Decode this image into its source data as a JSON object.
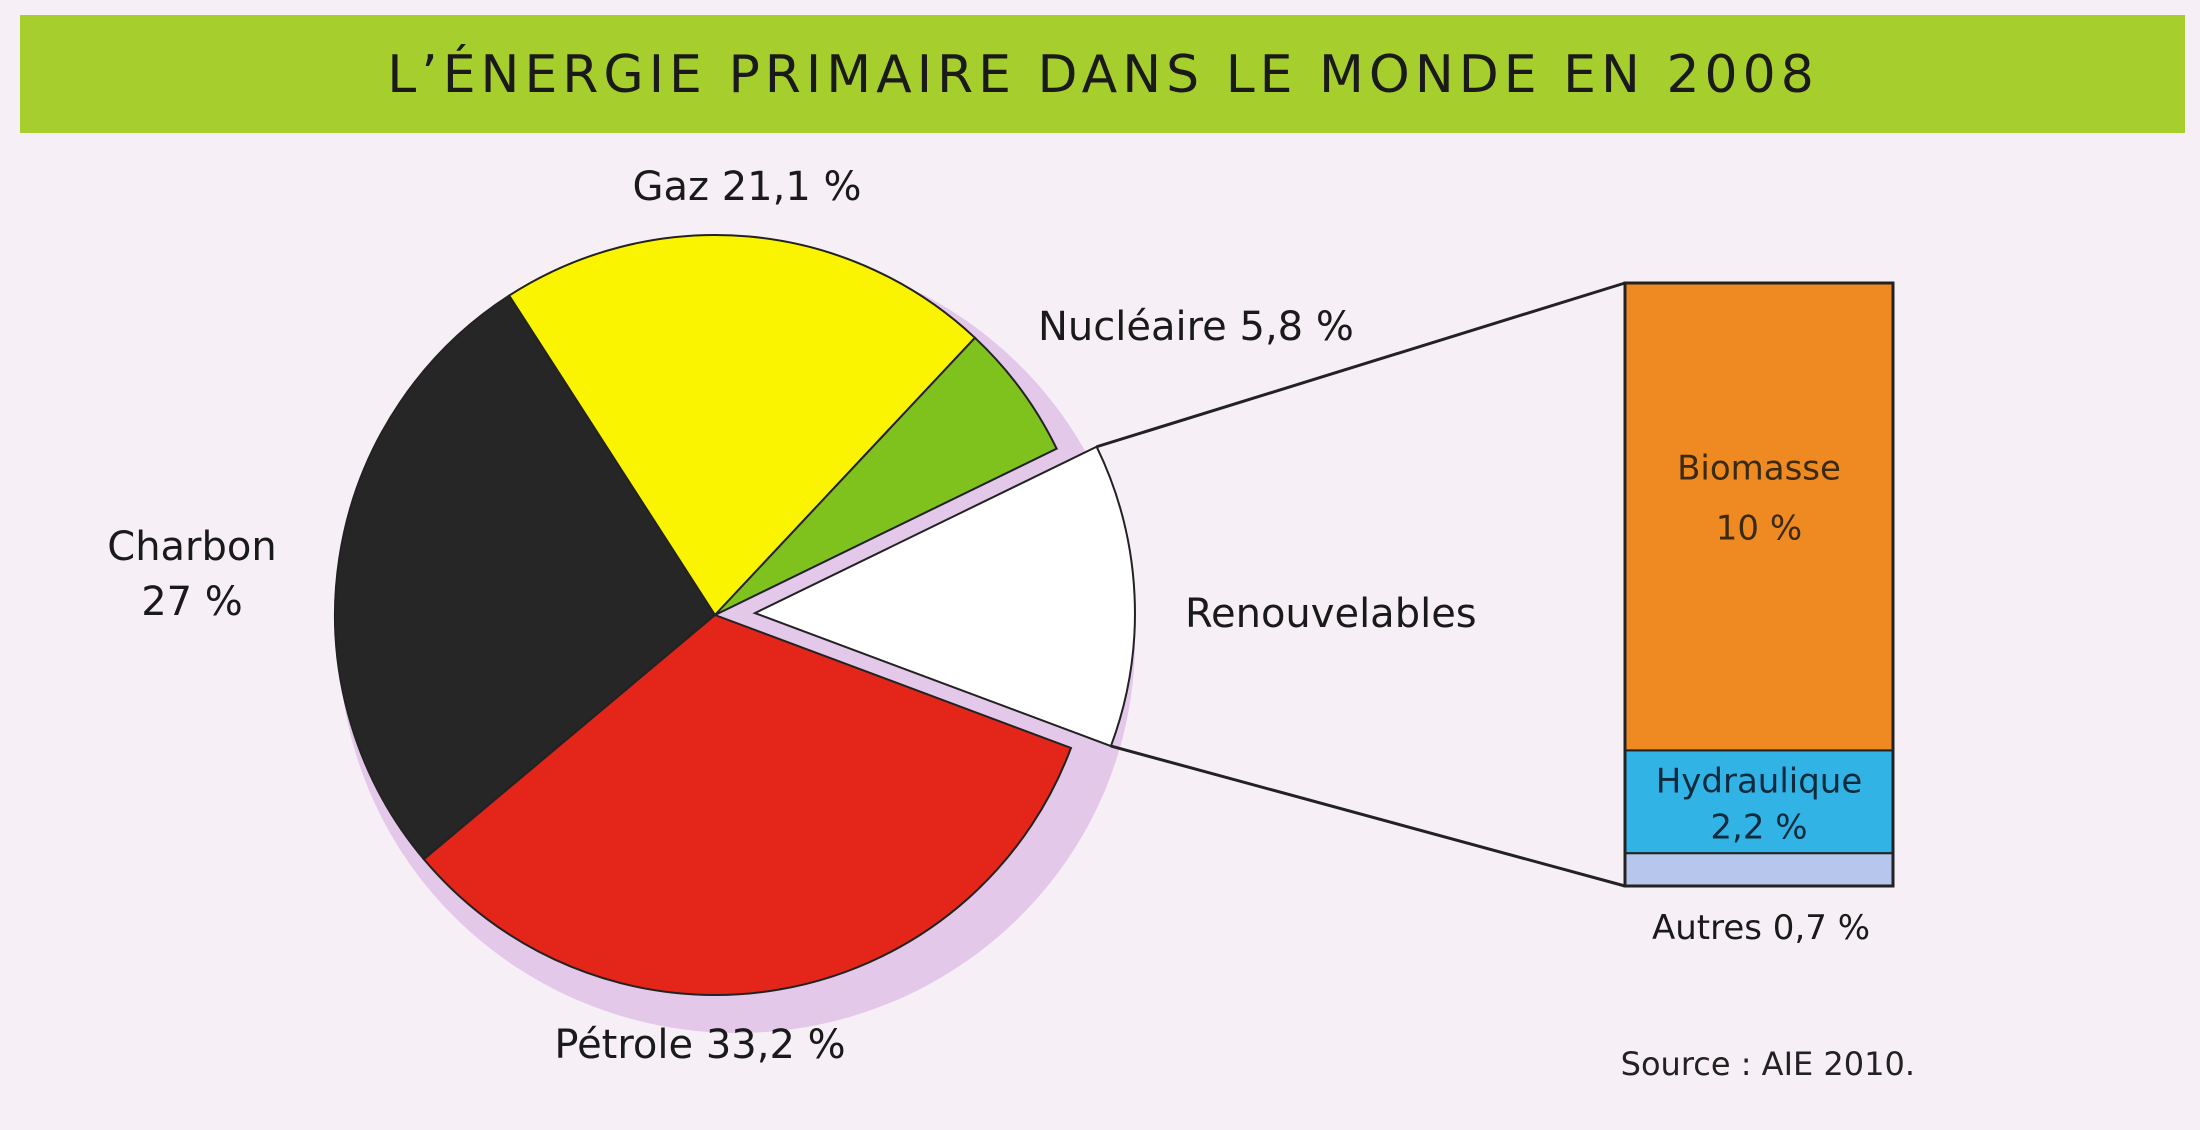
{
  "colors": {
    "title_bar": "#a6cf2e",
    "background": "#f6f0f6",
    "charbon": "#262626",
    "gaz": "#fbf400",
    "nucleaire": "#7fc21e",
    "renouvelables": "#ffffff",
    "petrole": "#e32619",
    "biomasse": "#ef8a22",
    "hydraulique": "#31b3e6",
    "autres": "#b7c6ec",
    "shadow": "#c27fd0"
  },
  "chart_data": {
    "type": "pie",
    "title": "L’ÉNERGIE PRIMAIRE DANS LE MONDE EN 2008",
    "source": "Source : AIE 2010.",
    "unit": "%",
    "slices": [
      {
        "name": "Charbon",
        "value": 27,
        "display": "27 %",
        "color_key": "charbon"
      },
      {
        "name": "Gaz",
        "value": 21.1,
        "display": "21,1 %",
        "color_key": "gaz"
      },
      {
        "name": "Nucléaire",
        "value": 5.8,
        "display": "5,8 %",
        "color_key": "nucleaire"
      },
      {
        "name": "Renouvelables",
        "value": 12.9,
        "display": "",
        "color_key": "renouvelables"
      },
      {
        "name": "Pétrole",
        "value": 33.2,
        "display": "33,2 %",
        "color_key": "petrole"
      }
    ],
    "breakdown": {
      "of": "Renouvelables",
      "type": "stacked-bar",
      "segments": [
        {
          "name": "Biomasse",
          "value": 10,
          "display": "10 %",
          "color_key": "biomasse"
        },
        {
          "name": "Hydraulique",
          "value": 2.2,
          "display": "2,2 %",
          "color_key": "hydraulique"
        },
        {
          "name": "Autres",
          "value": 0.7,
          "display": "0,7 %",
          "color_key": "autres"
        }
      ]
    }
  }
}
